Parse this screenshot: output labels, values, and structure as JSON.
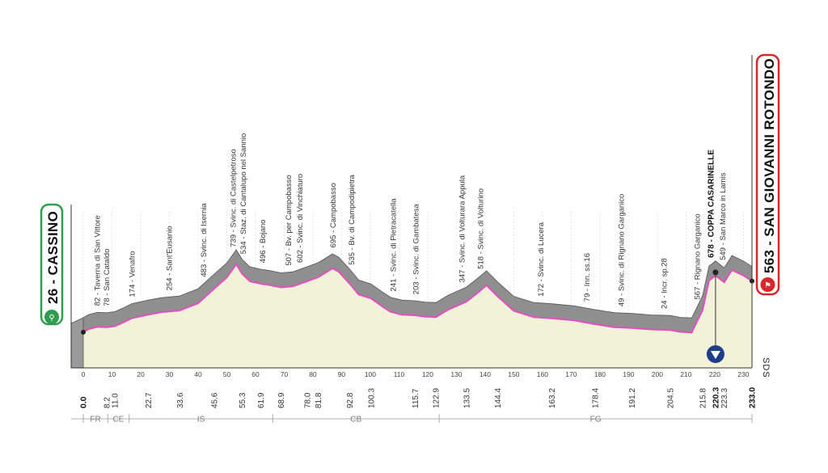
{
  "chart_data": {
    "type": "area",
    "title": "",
    "start": {
      "altitude": "26",
      "name": "CASSINO"
    },
    "finish": {
      "altitude": "563",
      "name": "SAN GIOVANNI ROTONDO"
    },
    "xlim": [
      0,
      233
    ],
    "ylim": [
      0,
      800
    ],
    "x_ticks": [
      0,
      10,
      20,
      30,
      40,
      50,
      60,
      70,
      80,
      90,
      100,
      110,
      120,
      130,
      140,
      150,
      160,
      170,
      180,
      190,
      200,
      210,
      220,
      230
    ],
    "y_ticks": [
      0,
      200,
      400,
      600
    ],
    "profile": {
      "x": [
        0,
        2,
        5,
        8.2,
        11,
        14,
        17,
        22.7,
        27,
        33.6,
        40,
        45.6,
        50,
        53.3,
        55.3,
        58,
        61.9,
        65,
        68.9,
        73,
        78,
        81.8,
        86.8,
        89,
        92.8,
        96,
        100.3,
        104,
        107,
        111,
        115.7,
        119,
        122.9,
        127,
        133.5,
        137,
        140.5,
        144.4,
        150,
        157,
        163.2,
        171,
        178.4,
        185,
        191.2,
        198,
        204.5,
        208,
        212,
        215.8,
        218,
        220.3,
        223.3,
        226,
        230,
        233
      ],
      "y": [
        26,
        60,
        82,
        78,
        90,
        130,
        174,
        210,
        235,
        254,
        330,
        483,
        600,
        739,
        640,
        560,
        534,
        520,
        496,
        507,
        560,
        602,
        695,
        660,
        535,
        420,
        380,
        300,
        241,
        210,
        203,
        190,
        185,
        260,
        347,
        430,
        518,
        400,
        250,
        185,
        172,
        150,
        110,
        79,
        70,
        55,
        49,
        30,
        24,
        260,
        567,
        620,
        549,
        678,
        620,
        563
      ]
    },
    "climbs": [
      {
        "km": 16,
        "color": "#c2266b"
      },
      {
        "km": 53.3,
        "color": "#c2266b"
      },
      {
        "km": 86.8,
        "color": "#c2266b"
      },
      {
        "km": 140.5,
        "color": "#c2266b"
      },
      {
        "km": 223.3,
        "color": "#c2266b"
      }
    ],
    "places": [
      {
        "km": 5,
        "label": "82 - Taverna di San Vittore"
      },
      {
        "km": 8.2,
        "label": "78 - San Cataldo"
      },
      {
        "km": 17,
        "label": "174 - Venafro"
      },
      {
        "km": 30,
        "label": "254 - Sant'Eusanio"
      },
      {
        "km": 42,
        "label": "483 - Svinc. di Isernia"
      },
      {
        "km": 52.3,
        "label": "739 - Svinc. di Castelpetroso"
      },
      {
        "km": 55.8,
        "label": "534 - Staz. di Cantalupo nel Sannio"
      },
      {
        "km": 62.5,
        "label": "496 - Bojano"
      },
      {
        "km": 71.5,
        "label": "507 - Bv. per Campobasso"
      },
      {
        "km": 75.5,
        "label": "602 - Svinc. di Vinchiaturo"
      },
      {
        "km": 87,
        "label": "695 - Campobasso"
      },
      {
        "km": 93.5,
        "label": "535 - Bv. di Campodipietra"
      },
      {
        "km": 108,
        "label": "241 - Svinc. di Pietracatella"
      },
      {
        "km": 116,
        "label": "203 - Svinc. di Gambatesa"
      },
      {
        "km": 132,
        "label": "347 - Svinc. di Volturara Appula"
      },
      {
        "km": 138.5,
        "label": "518 - Svinc. di Volturino"
      },
      {
        "km": 159.5,
        "label": "172 - Svinc. di Lucera"
      },
      {
        "km": 175.5,
        "label": "79 - Inn. ss.16"
      },
      {
        "km": 187.5,
        "label": "49 - Svinc. di Rignano Garganico"
      },
      {
        "km": 202.5,
        "label": "24 - Incr. sp.28"
      },
      {
        "km": 214,
        "label": "567 - Rignano Garganico"
      },
      {
        "km": 218.8,
        "label": "678 - COPPA CASARINELLE",
        "bold": true
      },
      {
        "km": 222.8,
        "label": "549 - San Marco in Lamis"
      }
    ],
    "distances": [
      {
        "km": 0,
        "label": "0.0",
        "bold": true
      },
      {
        "km": 8.2,
        "label": "8.2"
      },
      {
        "km": 11,
        "label": "11.0"
      },
      {
        "km": 22.7,
        "label": "22.7"
      },
      {
        "km": 33.6,
        "label": "33.6"
      },
      {
        "km": 45.6,
        "label": "45.6"
      },
      {
        "km": 55.3,
        "label": "55.3"
      },
      {
        "km": 61.9,
        "label": "61.9"
      },
      {
        "km": 68.9,
        "label": "68.9"
      },
      {
        "km": 78,
        "label": "78.0"
      },
      {
        "km": 81.8,
        "label": "81.8"
      },
      {
        "km": 92.8,
        "label": "92.8"
      },
      {
        "km": 100.3,
        "label": "100.3"
      },
      {
        "km": 115.7,
        "label": "115.7"
      },
      {
        "km": 122.9,
        "label": "122.9"
      },
      {
        "km": 133.5,
        "label": "133.5"
      },
      {
        "km": 144.4,
        "label": "144.4"
      },
      {
        "km": 163.2,
        "label": "163.2"
      },
      {
        "km": 178.4,
        "label": "178.4"
      },
      {
        "km": 191.2,
        "label": "191.2"
      },
      {
        "km": 204.5,
        "label": "204.5"
      },
      {
        "km": 215.8,
        "label": "215.8"
      },
      {
        "km": 220.3,
        "label": "220.3",
        "bold": true
      },
      {
        "km": 223.3,
        "label": "223.3"
      },
      {
        "km": 233,
        "label": "233.0",
        "bold": true
      }
    ],
    "regions": [
      {
        "label": "FR",
        "from": 0,
        "to": 8.5
      },
      {
        "label": "CE",
        "from": 8.5,
        "to": 16
      },
      {
        "label": "IS",
        "from": 16,
        "to": 66
      },
      {
        "label": "CB",
        "from": 66,
        "to": 124
      },
      {
        "label": "FG",
        "from": 124,
        "to": 233
      }
    ],
    "sds_label": "SDS",
    "grid": true,
    "colors": {
      "profile_fill": "#f2f2d8",
      "profile_top": "#8f8f8f",
      "road_line": "#e64ec0",
      "start_green": "#2e9e4e",
      "finish_red": "#d9262a",
      "gpm_blue": "#1d3e8a"
    }
  }
}
